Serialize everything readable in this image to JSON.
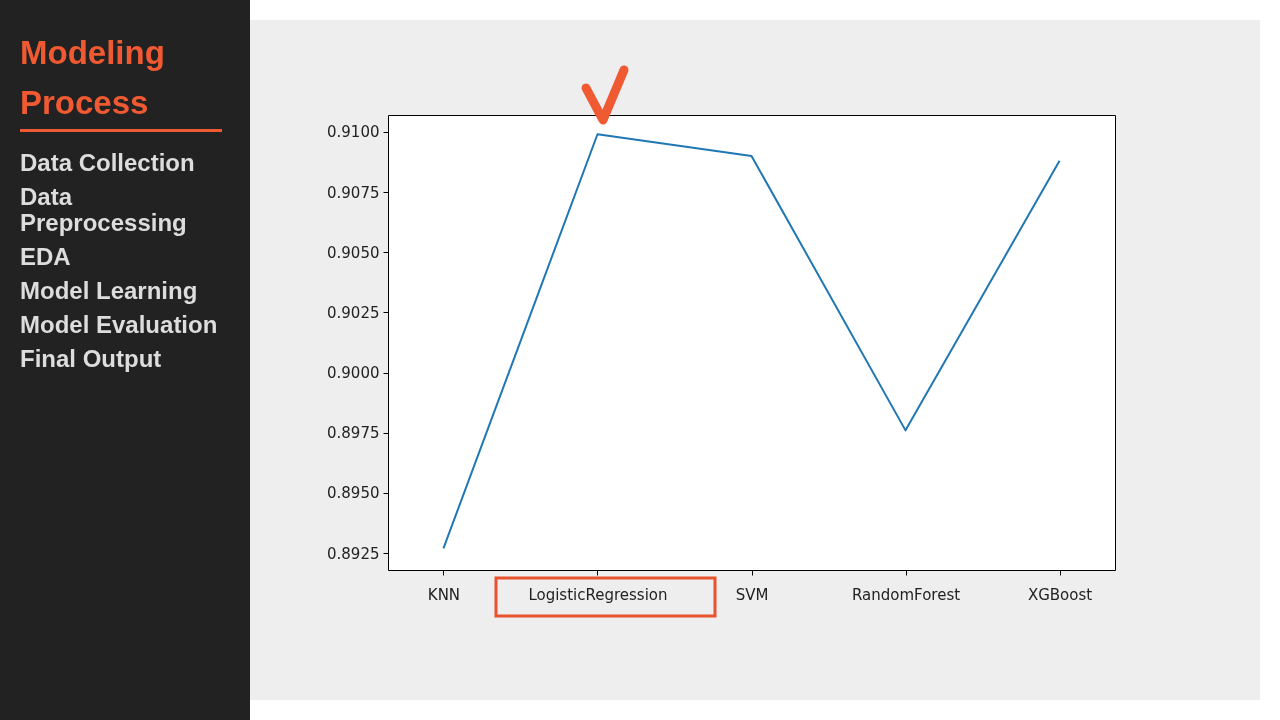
{
  "chart_data": {
    "type": "line",
    "title": "Modeling Process",
    "annotations": [
      "Data Collection",
      "Data Preprocessing",
      "EDA",
      "Model Learning",
      "Model Evaluation",
      "Final Output"
    ],
    "categories": [
      "KNN",
      "LogisticRegression",
      "SVM",
      "RandomForest",
      "XGBoost"
    ],
    "series": [
      {
        "color": "#1f77b4",
        "values": [
          0.8927,
          0.9099,
          0.909,
          0.8976,
          0.9088
        ]
      }
    ],
    "ylim": [
      0.8918,
      0.9107
    ],
    "yticks": [
      0.8925,
      {
        "value": 0.895,
        "label": "0.8950"
      },
      0.8975,
      {
        "value": 0.9,
        "label": "0.9000"
      },
      0.9025,
      {
        "value": 0.905,
        "label": "0.9050"
      },
      0.9075,
      {
        "value": 0.91,
        "label": "0.9100"
      }
    ],
    "grid": false,
    "marker": "none",
    "line_style": "solid"
  }
}
